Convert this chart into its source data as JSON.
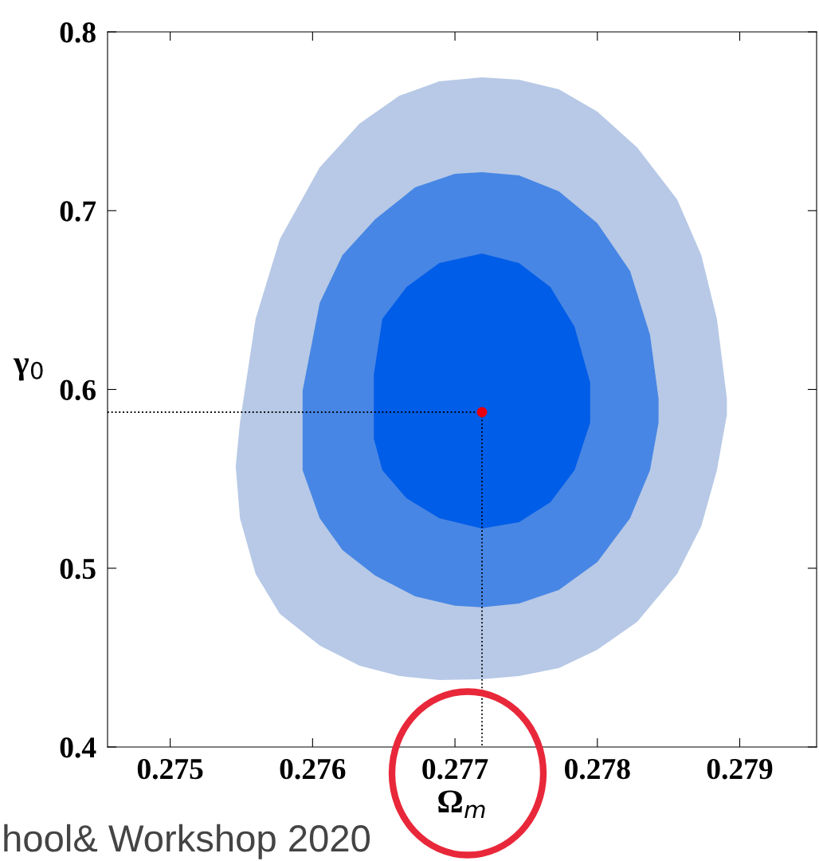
{
  "chart_data": {
    "type": "area",
    "xlabel": "Ω$_{m}$",
    "ylabel": "γ$_{0}$",
    "xlim": [
      0.27456,
      0.27954
    ],
    "ylim": [
      0.4,
      0.8
    ],
    "xticks": [
      0.275,
      0.276,
      0.277,
      0.278,
      0.279
    ],
    "yticks": [
      0.4,
      0.5,
      0.6,
      0.7,
      0.8
    ],
    "grid": false,
    "legend": false,
    "annotations": [
      "hool& Workshop 2020"
    ],
    "series": [
      {
        "color": "#b7c9e6",
        "x": [
          0.27546,
          0.27549,
          0.2756,
          0.27577,
          0.27605,
          0.27633,
          0.27661,
          0.27689,
          0.27719,
          0.27745,
          0.27773,
          0.278,
          0.27828,
          0.27856,
          0.27873,
          0.27884,
          0.27891,
          0.27891,
          0.27884,
          0.27873,
          0.27856,
          0.27828,
          0.278,
          0.27773,
          0.27745,
          0.27719,
          0.27689,
          0.27661,
          0.27633,
          0.27605,
          0.27577,
          0.2756,
          0.27549
        ],
        "values": [
          0.557,
          0.5815,
          0.6395,
          0.6841,
          0.7242,
          0.7487,
          0.7643,
          0.7724,
          0.7746,
          0.7732,
          0.7679,
          0.7554,
          0.7353,
          0.7064,
          0.6751,
          0.6395,
          0.5949,
          0.586,
          0.5548,
          0.5235,
          0.4968,
          0.47,
          0.4544,
          0.4442,
          0.4397,
          0.4379,
          0.4375,
          0.4397,
          0.4455,
          0.4567,
          0.4745,
          0.4968,
          0.528
        ]
      },
      {
        "color": "#4786e4",
        "x": [
          0.27593,
          0.27605,
          0.27621,
          0.27644,
          0.27672,
          0.277,
          0.27719,
          0.27745,
          0.27773,
          0.278,
          0.27823,
          0.27837,
          0.27843,
          0.27843,
          0.27837,
          0.27823,
          0.278,
          0.27773,
          0.27745,
          0.27719,
          0.277,
          0.27672,
          0.27644,
          0.27621,
          0.27605,
          0.27593
        ],
        "values": [
          0.5993,
          0.6484,
          0.6751,
          0.6952,
          0.713,
          0.7206,
          0.7215,
          0.7197,
          0.7108,
          0.693,
          0.6662,
          0.6306,
          0.5949,
          0.5815,
          0.5548,
          0.528,
          0.5035,
          0.4879,
          0.4803,
          0.4781,
          0.479,
          0.4843,
          0.4959,
          0.5102,
          0.528,
          0.5548
        ]
      },
      {
        "color": "#005de8",
        "x": [
          0.27643,
          0.27649,
          0.27666,
          0.27689,
          0.27719,
          0.27745,
          0.27767,
          0.27784,
          0.27795,
          0.27795,
          0.27784,
          0.27767,
          0.27745,
          0.27719,
          0.27689,
          0.27666,
          0.27649,
          0.27643
        ],
        "values": [
          0.6083,
          0.6395,
          0.6573,
          0.6707,
          0.676,
          0.6707,
          0.6573,
          0.635,
          0.6038,
          0.5815,
          0.5548,
          0.5369,
          0.5258,
          0.5222,
          0.528,
          0.5391,
          0.5548,
          0.5726
        ]
      },
      {
        "type": "line",
        "color": "#000000",
        "line_style": "dotted",
        "x": [
          0.27456,
          0.27719
        ],
        "values": [
          0.5873,
          0.5873
        ]
      },
      {
        "type": "line",
        "color": "#000000",
        "line_style": "dotted",
        "x": [
          0.27719,
          0.27719
        ],
        "values": [
          0.5873,
          0.4
        ]
      },
      {
        "type": "scatter",
        "color": "#e8000f",
        "marker": "circle",
        "x": [
          0.27719
        ],
        "values": [
          0.5873
        ]
      }
    ]
  }
}
